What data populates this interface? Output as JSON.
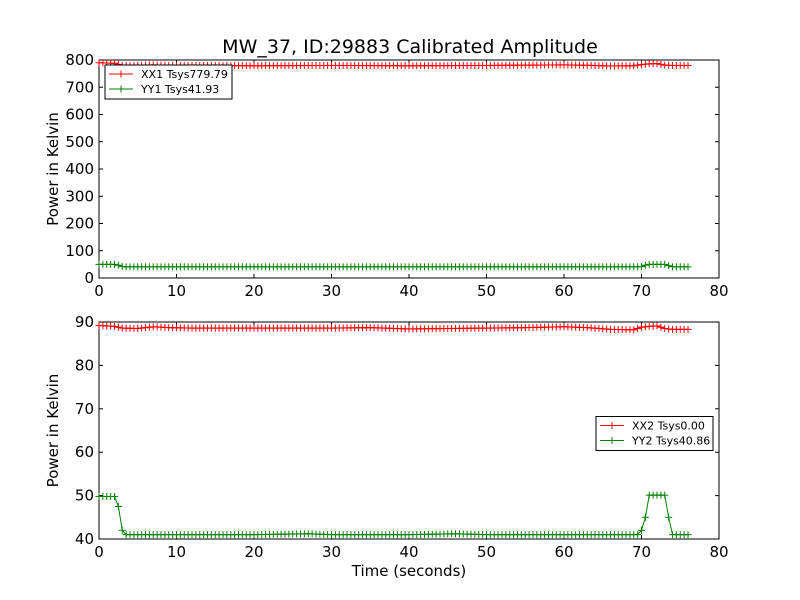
{
  "figure": {
    "title": "MW_37, ID:29883 Calibrated Amplitude"
  },
  "chart_data": [
    {
      "type": "line",
      "title": "MW_37, ID:29883 Calibrated Amplitude",
      "xlabel": "",
      "ylabel": "Power in Kelvin",
      "xlim": [
        0,
        80
      ],
      "ylim": [
        0,
        800
      ],
      "xticks": [
        "0",
        "10",
        "20",
        "30",
        "40",
        "50",
        "60",
        "70",
        "80"
      ],
      "yticks": [
        "0",
        "100",
        "200",
        "300",
        "400",
        "500",
        "600",
        "700",
        "800"
      ],
      "grid": false,
      "legend_position": "top-left",
      "series": [
        {
          "name": "XX1 Tsys779.79",
          "color": "#ff0000",
          "marker": "plus",
          "x": [
            0.0,
            2.0,
            3.0,
            5.0,
            7.0,
            9.0,
            12.0,
            20.0,
            30.0,
            40.0,
            50.0,
            55.0,
            60.0,
            64.0,
            66.0,
            69.0,
            70.0,
            71.0,
            72.0,
            73.0,
            74.0,
            76.0
          ],
          "y": [
            790,
            788,
            780,
            780,
            782,
            780,
            780,
            779,
            780,
            779,
            780,
            781,
            782,
            780,
            778,
            779,
            783,
            786,
            787,
            781,
            780,
            780
          ]
        },
        {
          "name": "YY1 Tsys41.93",
          "color": "#008000",
          "marker": "plus",
          "x": [
            0.0,
            1.0,
            2.0,
            2.5,
            3.0,
            3.5,
            10.0,
            20.0,
            30.0,
            40.0,
            50.0,
            60.0,
            69.5,
            70.0,
            70.5,
            71.0,
            72.0,
            73.0,
            73.5,
            74.0,
            76.0
          ],
          "y": [
            50,
            50,
            50,
            47,
            42,
            41,
            41,
            41,
            41,
            41,
            41,
            41,
            41,
            42,
            47,
            50,
            50,
            50,
            45,
            41,
            41
          ]
        }
      ]
    },
    {
      "type": "line",
      "title": "",
      "xlabel": "Time (seconds)",
      "ylabel": "Power in Kelvin",
      "xlim": [
        0,
        80
      ],
      "ylim": [
        40,
        90
      ],
      "xticks": [
        "0",
        "10",
        "20",
        "30",
        "40",
        "50",
        "60",
        "70",
        "80"
      ],
      "yticks": [
        "40",
        "50",
        "60",
        "70",
        "80",
        "90"
      ],
      "grid": false,
      "legend_position": "center-right",
      "series": [
        {
          "name": "XX2 Tsys0.00",
          "color": "#ff0000",
          "marker": "plus",
          "x": [
            0.0,
            2.0,
            3.0,
            5.0,
            7.0,
            9.0,
            12.0,
            20.0,
            30.0,
            35.0,
            40.0,
            45.0,
            50.0,
            55.0,
            60.0,
            63.0,
            66.0,
            69.0,
            70.0,
            71.0,
            72.0,
            73.0,
            74.0,
            76.0
          ],
          "y": [
            89.2,
            89.0,
            88.6,
            88.5,
            88.9,
            88.7,
            88.6,
            88.6,
            88.6,
            88.7,
            88.4,
            88.5,
            88.6,
            88.7,
            88.9,
            88.7,
            88.3,
            88.2,
            88.8,
            89.0,
            89.1,
            88.5,
            88.3,
            88.3
          ]
        },
        {
          "name": "YY2 Tsys40.86",
          "color": "#008000",
          "marker": "plus",
          "x": [
            0.0,
            1.0,
            2.0,
            2.5,
            3.0,
            3.5,
            10.0,
            20.0,
            27.0,
            30.0,
            40.0,
            46.0,
            50.0,
            55.0,
            60.0,
            69.5,
            70.0,
            70.5,
            71.0,
            72.0,
            73.0,
            73.5,
            74.0,
            76.0
          ],
          "y": [
            49.8,
            49.8,
            49.8,
            47.5,
            42.0,
            41.0,
            41.0,
            41.0,
            41.2,
            41.0,
            41.0,
            41.2,
            41.0,
            41.0,
            41.0,
            41.0,
            42.0,
            45.0,
            50.1,
            50.1,
            50.1,
            45.0,
            41.0,
            41.0
          ]
        }
      ]
    }
  ]
}
